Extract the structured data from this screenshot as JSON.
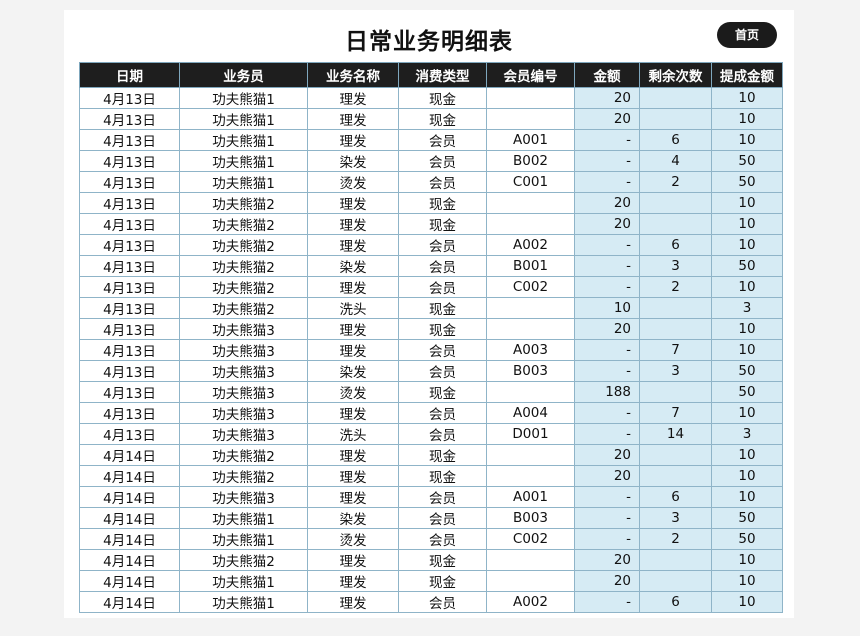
{
  "sheet": {
    "title": "日常业务明细表",
    "home_button": "首页",
    "columns": [
      "日期",
      "业务员",
      "业务名称",
      "消费类型",
      "会员编号",
      "金额",
      "剩余次数",
      "提成金额"
    ],
    "rows": [
      [
        "4月13日",
        "功夫熊猫1",
        "理发",
        "现金",
        "",
        "20",
        "",
        "10"
      ],
      [
        "4月13日",
        "功夫熊猫1",
        "理发",
        "现金",
        "",
        "20",
        "",
        "10"
      ],
      [
        "4月13日",
        "功夫熊猫1",
        "理发",
        "会员",
        "A001",
        "-",
        "6",
        "10"
      ],
      [
        "4月13日",
        "功夫熊猫1",
        "染发",
        "会员",
        "B002",
        "-",
        "4",
        "50"
      ],
      [
        "4月13日",
        "功夫熊猫1",
        "烫发",
        "会员",
        "C001",
        "-",
        "2",
        "50"
      ],
      [
        "4月13日",
        "功夫熊猫2",
        "理发",
        "现金",
        "",
        "20",
        "",
        "10"
      ],
      [
        "4月13日",
        "功夫熊猫2",
        "理发",
        "现金",
        "",
        "20",
        "",
        "10"
      ],
      [
        "4月13日",
        "功夫熊猫2",
        "理发",
        "会员",
        "A002",
        "-",
        "6",
        "10"
      ],
      [
        "4月13日",
        "功夫熊猫2",
        "染发",
        "会员",
        "B001",
        "-",
        "3",
        "50"
      ],
      [
        "4月13日",
        "功夫熊猫2",
        "理发",
        "会员",
        "C002",
        "-",
        "2",
        "10"
      ],
      [
        "4月13日",
        "功夫熊猫2",
        "洗头",
        "现金",
        "",
        "10",
        "",
        "3"
      ],
      [
        "4月13日",
        "功夫熊猫3",
        "理发",
        "现金",
        "",
        "20",
        "",
        "10"
      ],
      [
        "4月13日",
        "功夫熊猫3",
        "理发",
        "会员",
        "A003",
        "-",
        "7",
        "10"
      ],
      [
        "4月13日",
        "功夫熊猫3",
        "染发",
        "会员",
        "B003",
        "-",
        "3",
        "50"
      ],
      [
        "4月13日",
        "功夫熊猫3",
        "烫发",
        "现金",
        "",
        "188",
        "",
        "50"
      ],
      [
        "4月13日",
        "功夫熊猫3",
        "理发",
        "会员",
        "A004",
        "-",
        "7",
        "10"
      ],
      [
        "4月13日",
        "功夫熊猫3",
        "洗头",
        "会员",
        "D001",
        "-",
        "14",
        "3"
      ],
      [
        "4月14日",
        "功夫熊猫2",
        "理发",
        "现金",
        "",
        "20",
        "",
        "10"
      ],
      [
        "4月14日",
        "功夫熊猫2",
        "理发",
        "现金",
        "",
        "20",
        "",
        "10"
      ],
      [
        "4月14日",
        "功夫熊猫3",
        "理发",
        "会员",
        "A001",
        "-",
        "6",
        "10"
      ],
      [
        "4月14日",
        "功夫熊猫1",
        "染发",
        "会员",
        "B003",
        "-",
        "3",
        "50"
      ],
      [
        "4月14日",
        "功夫熊猫1",
        "烫发",
        "会员",
        "C002",
        "-",
        "2",
        "50"
      ],
      [
        "4月14日",
        "功夫熊猫2",
        "理发",
        "现金",
        "",
        "20",
        "",
        "10"
      ],
      [
        "4月14日",
        "功夫熊猫1",
        "理发",
        "现金",
        "",
        "20",
        "",
        "10"
      ],
      [
        "4月14日",
        "功夫熊猫1",
        "理发",
        "会员",
        "A002",
        "-",
        "6",
        "10"
      ]
    ]
  },
  "colors": {
    "header_bg": "#1e1e1e",
    "highlight_bg": "#d6ebf4",
    "grid": "#8fb4c8"
  }
}
